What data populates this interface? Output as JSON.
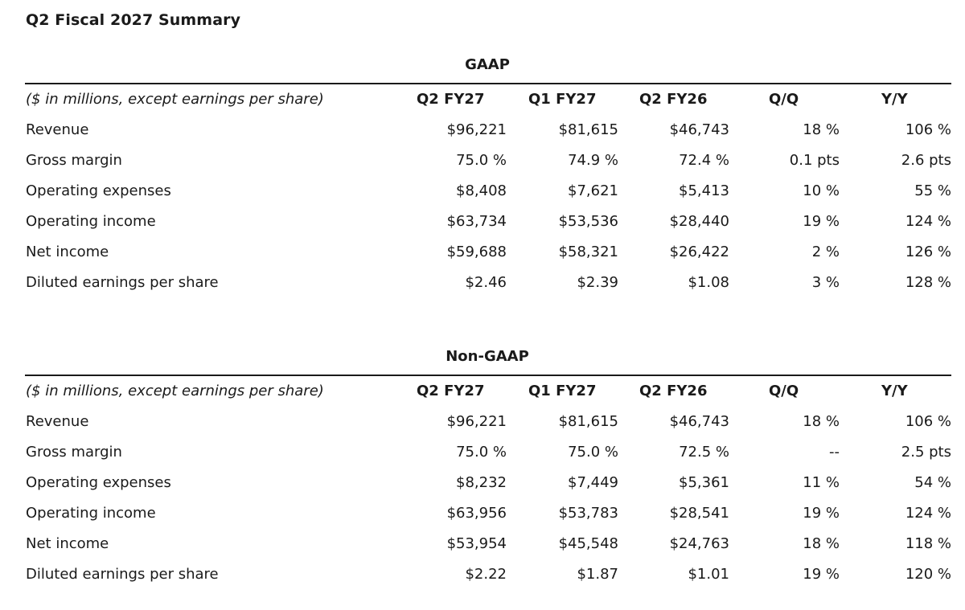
{
  "title": "Q2 Fiscal 2027 Summary",
  "sections": [
    {
      "heading": "GAAP",
      "columns": [
        "($ in millions, except earnings per share)",
        "Q2 FY27",
        "Q1 FY27",
        "Q2 FY26",
        "Q/Q",
        "Y/Y"
      ],
      "rows": [
        [
          "Revenue",
          "$96,221",
          "$81,615",
          "$46,743",
          "18 %",
          "106 %"
        ],
        [
          "Gross margin",
          "75.0 %",
          "74.9 %",
          "72.4 %",
          "0.1 pts",
          "2.6 pts"
        ],
        [
          "Operating expenses",
          "$8,408",
          "$7,621",
          "$5,413",
          "10 %",
          "55 %"
        ],
        [
          "Operating income",
          "$63,734",
          "$53,536",
          "$28,440",
          "19 %",
          "124 %"
        ],
        [
          "Net income",
          "$59,688",
          "$58,321",
          "$26,422",
          "2 %",
          "126 %"
        ],
        [
          "Diluted earnings per share",
          "$2.46",
          "$2.39",
          "$1.08",
          "3 %",
          "128 %"
        ]
      ]
    },
    {
      "heading": "Non-GAAP",
      "columns": [
        "($ in millions, except earnings per share)",
        "Q2 FY27",
        "Q1 FY27",
        "Q2 FY26",
        "Q/Q",
        "Y/Y"
      ],
      "rows": [
        [
          "Revenue",
          "$96,221",
          "$81,615",
          "$46,743",
          "18 %",
          "106 %"
        ],
        [
          "Gross margin",
          "75.0 %",
          "75.0 %",
          "72.5 %",
          "--",
          "2.5 pts"
        ],
        [
          "Operating expenses",
          "$8,232",
          "$7,449",
          "$5,361",
          "11 %",
          "54 %"
        ],
        [
          "Operating income",
          "$63,956",
          "$53,783",
          "$28,541",
          "19 %",
          "124 %"
        ],
        [
          "Net income",
          "$53,954",
          "$45,548",
          "$24,763",
          "18 %",
          "118 %"
        ],
        [
          "Diluted earnings per share",
          "$2.22",
          "$1.87",
          "$1.01",
          "19 %",
          "120 %"
        ]
      ]
    }
  ]
}
